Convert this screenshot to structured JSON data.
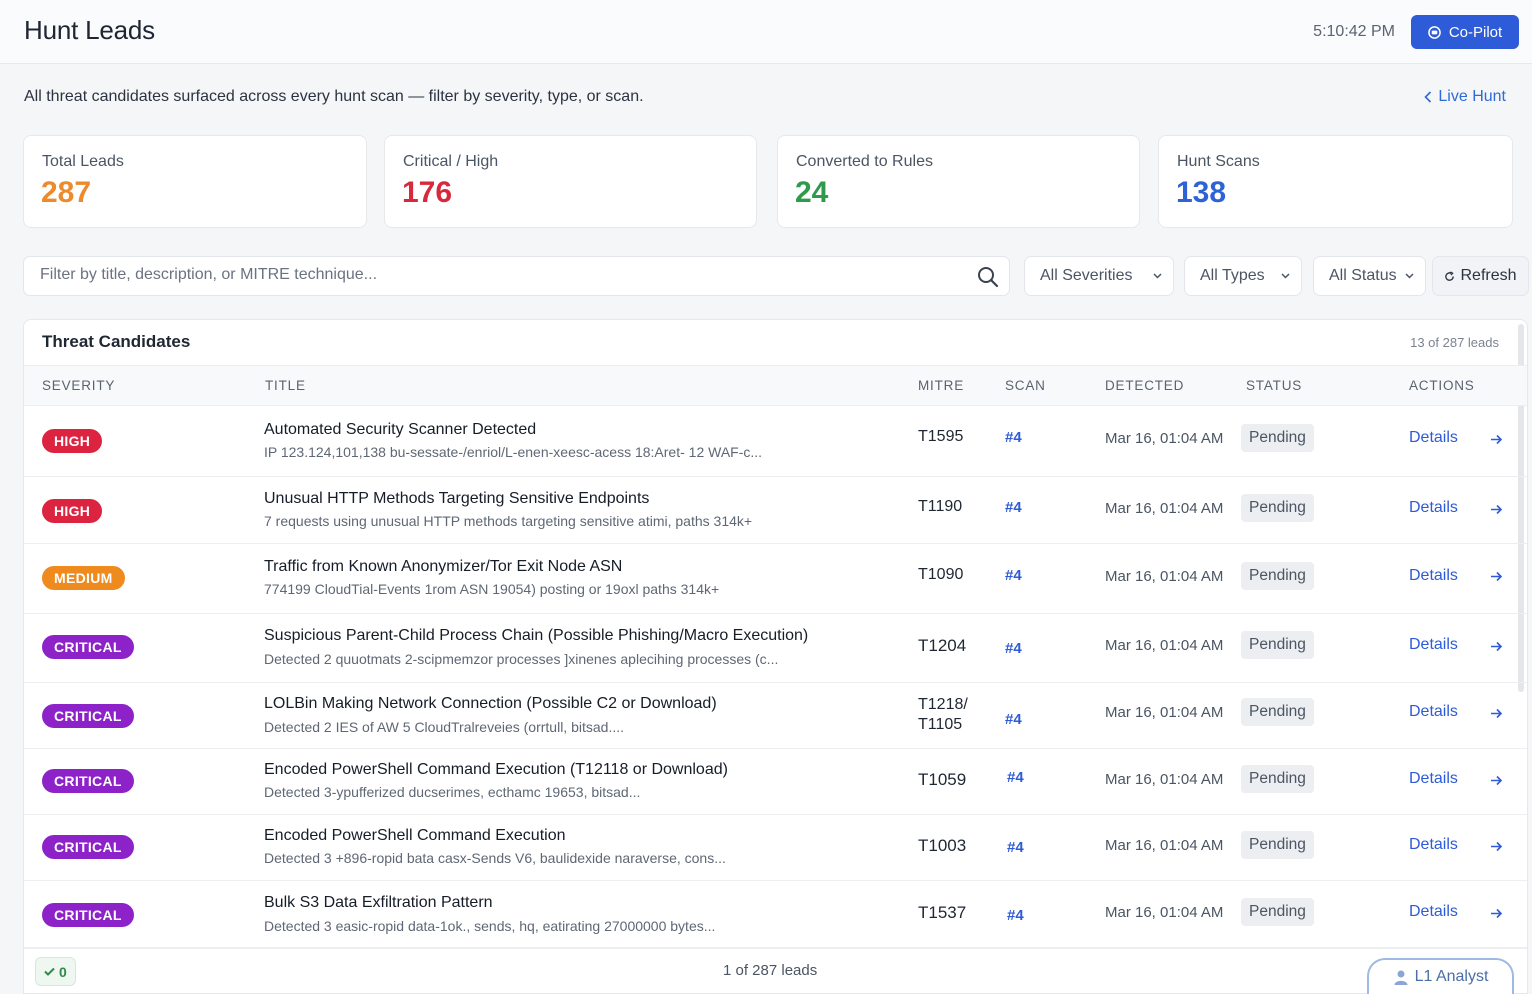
{
  "header": {
    "title": "Hunt Leads",
    "clock": "5:10:42 PM",
    "copilot_label": "Co-Pilot"
  },
  "subheader": {
    "description": "All threat candidates surfaced across every hunt scan — filter by severity, type, or scan.",
    "back_link": "Live Hunt"
  },
  "stats": [
    {
      "label": "Total Leads",
      "value": "287",
      "color": "#ec8a2c"
    },
    {
      "label": "Critical / High",
      "value": "176",
      "color": "#d8283c"
    },
    {
      "label": "Converted to Rules",
      "value": "24",
      "color": "#2d9a4c"
    },
    {
      "label": "Hunt Scans",
      "value": "138",
      "color": "#2e63d6"
    }
  ],
  "filters": {
    "search_placeholder": "Filter by title, description, or MITRE technique...",
    "severity": "All Severities",
    "type": "All Types",
    "status": "All Status",
    "refresh_label": "Refresh"
  },
  "table": {
    "title": "Threat Candidates",
    "count_label": "13 of 287 leads",
    "columns": [
      "SEVERITY",
      "TITLE",
      "MITRE",
      "SCAN",
      "DETECTED",
      "STATUS",
      "ACTIONS"
    ],
    "rows": [
      {
        "severity": "HIGH",
        "title": "Automated Security Scanner Detected",
        "desc": "IP 123.124,101,138 bu-sessate-/enriol/L-enen-xeesc-acess 18:Aret- 12 WAF-c...",
        "mitre": "T1595",
        "scan": "#4",
        "detected": "Mar 16, 01:04 AM",
        "status": "Pending",
        "action": "Details"
      },
      {
        "severity": "HIGH",
        "title": "Unusual HTTP Methods Targeting Sensitive Endpoints",
        "desc": "7 requests using unusual HTTP methods targeting sensitive atimi, paths 314k+",
        "mitre": "T1190",
        "scan": "#4",
        "detected": "Mar 16, 01:04 AM",
        "status": "Pending",
        "action": "Details"
      },
      {
        "severity": "MEDIUM",
        "title": "Traffic from Known Anonymizer/Tor Exit Node ASN",
        "desc": "774199 CloudTial-Events 1rom ASN 19054) posting or 19oxl paths 314k+",
        "mitre": "T1090",
        "scan": "#4",
        "detected": "Mar 16, 01:04 AM",
        "status": "Pending",
        "action": "Details"
      },
      {
        "severity": "CRITICAL",
        "title": "Suspicious Parent-Child Process Chain (Possible Phishing/Macro Execution)",
        "desc": "Detected 2 quuotmats 2-scipmemzor processes ]xinenes aplecihing processes (c...",
        "mitre": "T1204",
        "scan": "#4",
        "detected": "Mar 16, 01:04 AM",
        "status": "Pending",
        "action": "Details"
      },
      {
        "severity": "CRITICAL",
        "title": "LOLBin Making Network Connection (Possible C2 or Download)",
        "desc": "Detected 2 IES of AW 5 CloudTralreveies (orrtull, bitsad....",
        "mitre": "T1218/",
        "mitre2": "T1105",
        "scan": "#4",
        "detected": "Mar 16, 01:04 AM",
        "status": "Pending",
        "action": "Details"
      },
      {
        "severity": "CRITICAL",
        "title": "Encoded PowerShell Command Execution (T12118 or Download)",
        "desc": "Detected 3-ypufferized ducserimes, ecthamc 19653, bitsad...",
        "mitre": "T1059",
        "scan": "#4",
        "detected": "Mar 16, 01:04 AM",
        "status": "Pending",
        "action": "Details"
      },
      {
        "severity": "CRITICAL",
        "title": "Encoded PowerShell Command Execution",
        "desc": "Detected 3 +896-ropid bata casx-Sends V6, baulidexide naraverse, cons...",
        "mitre": "T1003",
        "scan": "#4",
        "detected": "Mar 16, 01:04 AM",
        "status": "Pending",
        "action": "Details"
      },
      {
        "severity": "CRITICAL",
        "title": "Bulk S3 Data Exfiltration Pattern",
        "desc": "Detected 3 easic-ropid data-1ok., sends, hq, eatirating 27000000 bytes...",
        "mitre": "T1537",
        "scan": "#4",
        "detected": "Mar 16, 01:04 AM",
        "status": "Pending",
        "action": "Details"
      }
    ]
  },
  "severity_colors": {
    "HIGH": "#dc2340",
    "MEDIUM": "#ef8a1e",
    "CRITICAL": "#8c22c8"
  },
  "footer": {
    "validated_count": "0",
    "pager": "1 of 287 leads"
  },
  "analyst_button": "L1 Analyst"
}
